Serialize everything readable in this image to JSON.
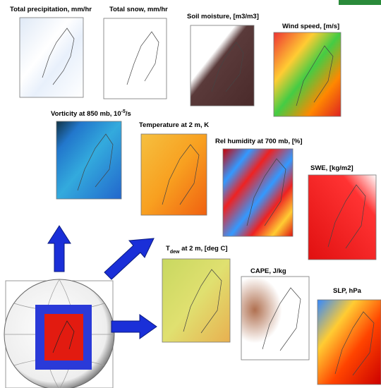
{
  "panels": [
    {
      "title": [
        "Total  precipitation, mm/hr"
      ]
    },
    {
      "title": [
        "Total snow, mm/hr"
      ]
    },
    {
      "title": [
        "Soil moisture, [m3/m3]"
      ]
    },
    {
      "title": [
        "Wind speed, [m/s]"
      ]
    },
    {
      "title": [
        "Vorticity at 850 mb, 10",
        "-5",
        "/s"
      ]
    },
    {
      "title": [
        "Temperature at 2 m, K"
      ]
    },
    {
      "title": [
        "Rel humidity at 700 mb, [%]"
      ]
    },
    {
      "title": [
        "SWE, [kg/m2]"
      ]
    },
    {
      "title": [
        "T",
        "dew",
        " at 2 m, [deg C]"
      ]
    },
    {
      "title": [
        "CAPE, J/kg"
      ]
    },
    {
      "title": [
        "SLP, hPa"
      ]
    }
  ]
}
